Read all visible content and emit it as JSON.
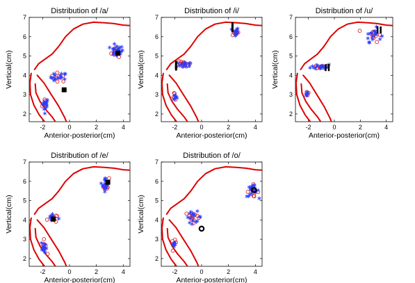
{
  "colors": {
    "tongue_outline": "#dd0000",
    "blue_star": "#2a3cff",
    "red_circle": "#e02020",
    "black_marker": "#000000"
  },
  "chart_data": [
    {
      "type": "scatter",
      "title": "Distribution of /a/",
      "xlabel": "Anterior-posterior(cm)",
      "ylabel": "Vertical(cm)",
      "xlim": [
        -3,
        4.5
      ],
      "ylim": [
        1.6,
        7
      ],
      "xticks": [
        "-2",
        "0",
        "2",
        "4"
      ],
      "yticks": [
        "2",
        "3",
        "4",
        "5",
        "6",
        "7"
      ],
      "xtick_values": [
        -2,
        0,
        2,
        4
      ],
      "ytick_values": [
        2,
        3,
        4,
        5,
        6,
        7
      ],
      "clusters": [
        {
          "name": "tip",
          "x": -1.8,
          "y": 2.5,
          "sx": 0.12,
          "sy": 0.18,
          "blue": 14,
          "red": 6
        },
        {
          "name": "middle",
          "x": -0.8,
          "y": 3.9,
          "sx": 0.3,
          "sy": 0.12,
          "blue": 16,
          "red": 8
        },
        {
          "name": "back",
          "x": 3.5,
          "y": 5.25,
          "sx": 0.25,
          "sy": 0.15,
          "blue": 22,
          "red": 8
        }
      ],
      "black_markers": [
        {
          "x": -0.4,
          "y": 3.25
        },
        {
          "x": 3.6,
          "y": 5.15
        }
      ],
      "black_marker_shape": "square"
    },
    {
      "type": "scatter",
      "title": "Distribution of /i/",
      "xlabel": "Anterior-posterior(cm)",
      "ylabel": "Vertical(cm)",
      "xlim": [
        -3,
        4.5
      ],
      "ylim": [
        1.6,
        7
      ],
      "xticks": [
        "-2",
        "0",
        "2",
        "4"
      ],
      "yticks": [
        "2",
        "3",
        "4",
        "5",
        "6",
        "7"
      ],
      "xtick_values": [
        -2,
        0,
        2,
        4
      ],
      "ytick_values": [
        2,
        3,
        4,
        5,
        6,
        7
      ],
      "clusters": [
        {
          "name": "tip",
          "x": -2.0,
          "y": 2.9,
          "sx": 0.08,
          "sy": 0.12,
          "blue": 8,
          "red": 5
        },
        {
          "name": "middle",
          "x": -1.3,
          "y": 4.55,
          "sx": 0.3,
          "sy": 0.08,
          "blue": 14,
          "red": 12
        },
        {
          "name": "back",
          "x": 2.5,
          "y": 6.25,
          "sx": 0.12,
          "sy": 0.12,
          "blue": 14,
          "red": 8
        }
      ],
      "black_markers": [
        {
          "x": -1.9,
          "y": 4.5
        },
        {
          "x": 2.3,
          "y": 6.5
        }
      ],
      "black_marker_shape": "bar"
    },
    {
      "type": "scatter",
      "title": "Distribution of /u/",
      "xlabel": "Anterior-posterior(cm)",
      "ylabel": "Vertical(cm)",
      "xlim": [
        -3,
        4.5
      ],
      "ylim": [
        1.6,
        7
      ],
      "xticks": [
        "-2",
        "0",
        "2",
        "4"
      ],
      "yticks": [
        "2",
        "3",
        "4",
        "5",
        "6",
        "7"
      ],
      "xtick_values": [
        -2,
        0,
        2,
        4
      ],
      "ytick_values": [
        2,
        3,
        4,
        5,
        6,
        7
      ],
      "clusters": [
        {
          "name": "tip",
          "x": -2.1,
          "y": 3.05,
          "sx": 0.08,
          "sy": 0.08,
          "blue": 5,
          "red": 3
        },
        {
          "name": "middle",
          "x": -1.0,
          "y": 4.45,
          "sx": 0.4,
          "sy": 0.07,
          "blue": 16,
          "red": 10
        },
        {
          "name": "back",
          "x": 3.0,
          "y": 6.1,
          "sx": 0.3,
          "sy": 0.18,
          "blue": 16,
          "red": 10
        }
      ],
      "black_markers": [
        {
          "x": -0.55,
          "y": 4.4
        },
        {
          "x": 3.45,
          "y": 6.35
        }
      ],
      "black_marker_shape": "double-bar"
    },
    {
      "type": "scatter",
      "title": "Distribution of /e/",
      "xlabel": "Anterior-posterior(cm)",
      "ylabel": "Vertical(cm)",
      "xlim": [
        -3,
        4.5
      ],
      "ylim": [
        1.6,
        7
      ],
      "xticks": [
        "-2",
        "0",
        "2",
        "4"
      ],
      "yticks": [
        "2",
        "3",
        "4",
        "5",
        "6",
        "7"
      ],
      "xtick_values": [
        -2,
        0,
        2,
        4
      ],
      "ytick_values": [
        2,
        3,
        4,
        5,
        6,
        7
      ],
      "clusters": [
        {
          "name": "tip",
          "x": -1.9,
          "y": 2.6,
          "sx": 0.1,
          "sy": 0.18,
          "blue": 12,
          "red": 8
        },
        {
          "name": "middle",
          "x": -1.3,
          "y": 4.1,
          "sx": 0.18,
          "sy": 0.12,
          "blue": 12,
          "red": 8
        },
        {
          "name": "back",
          "x": 2.7,
          "y": 5.85,
          "sx": 0.12,
          "sy": 0.18,
          "blue": 16,
          "red": 8
        }
      ],
      "black_markers": [
        {
          "x": -1.2,
          "y": 4.05
        },
        {
          "x": 2.85,
          "y": 5.95
        }
      ],
      "black_marker_shape": "square"
    },
    {
      "type": "scatter",
      "title": "Distribution of /o/",
      "xlabel": "Anterior-posterior(cm)",
      "ylabel": "Vertical(cm)",
      "xlim": [
        -3,
        4.5
      ],
      "ylim": [
        1.6,
        7
      ],
      "xticks": [
        "-2",
        "0",
        "2",
        "4"
      ],
      "yticks": [
        "2",
        "3",
        "4",
        "5",
        "6",
        "7"
      ],
      "xtick_values": [
        -2,
        0,
        2,
        4
      ],
      "ytick_values": [
        2,
        3,
        4,
        5,
        6,
        7
      ],
      "clusters": [
        {
          "name": "tip",
          "x": -2.05,
          "y": 2.75,
          "sx": 0.08,
          "sy": 0.1,
          "blue": 8,
          "red": 5
        },
        {
          "name": "middle",
          "x": -0.6,
          "y": 4.15,
          "sx": 0.3,
          "sy": 0.14,
          "blue": 16,
          "red": 12
        },
        {
          "name": "back",
          "x": 3.8,
          "y": 5.5,
          "sx": 0.22,
          "sy": 0.15,
          "blue": 20,
          "red": 12
        }
      ],
      "black_markers": [
        {
          "x": 0.0,
          "y": 3.55
        },
        {
          "x": 3.9,
          "y": 5.55
        }
      ],
      "black_marker_shape": "ring"
    }
  ],
  "vocal_tract": {
    "palate": [
      [
        -2.6,
        4.3
      ],
      [
        -2.3,
        4.6
      ],
      [
        -1.8,
        4.85
      ],
      [
        -1.3,
        5.1
      ],
      [
        -0.8,
        5.5
      ],
      [
        -0.3,
        6.0
      ],
      [
        0.3,
        6.4
      ],
      [
        1.0,
        6.65
      ],
      [
        1.8,
        6.75
      ],
      [
        2.6,
        6.72
      ],
      [
        3.3,
        6.68
      ],
      [
        4.0,
        6.6
      ],
      [
        4.5,
        6.58
      ]
    ],
    "lower_outer": [
      [
        -2.85,
        4.1
      ],
      [
        -2.95,
        3.6
      ],
      [
        -2.9,
        3.0
      ],
      [
        -2.65,
        2.45
      ],
      [
        -2.25,
        1.95
      ],
      [
        -1.8,
        1.55
      ]
    ],
    "lower_inner": [
      [
        -2.55,
        3.55
      ],
      [
        -2.5,
        3.1
      ],
      [
        -2.2,
        2.65
      ],
      [
        -1.8,
        2.25
      ],
      [
        -1.3,
        1.85
      ],
      [
        -1.0,
        1.55
      ]
    ],
    "tongue_base": [
      [
        -2.4,
        4.0
      ],
      [
        -1.9,
        3.6
      ],
      [
        -1.4,
        3.05
      ],
      [
        -0.8,
        2.4
      ],
      [
        -0.35,
        1.8
      ],
      [
        -0.2,
        1.55
      ]
    ]
  }
}
